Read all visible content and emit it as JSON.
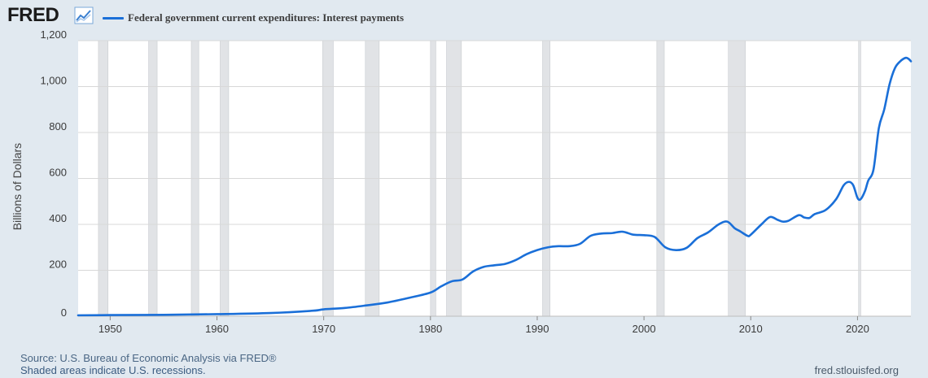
{
  "header": {
    "logo_text": "FRED",
    "logo_icon": "trend-line-icon",
    "legend_label": "Federal government current expenditures: Interest payments"
  },
  "footer": {
    "source": "Source: U.S. Bureau of Economic Analysis via FRED®",
    "note": "Shaded areas indicate U.S. recessions.",
    "url": "fred.stlouisfed.org"
  },
  "colors": {
    "line": "#1a6fd8",
    "background": "#e1e9f0",
    "plot_bg": "#ffffff",
    "grid": "#d8d8d8",
    "recession": "#e1e3e6"
  },
  "chart_data": {
    "type": "line",
    "title": "",
    "xlabel": "",
    "ylabel": "Billions of Dollars",
    "xlim": [
      1947,
      2025
    ],
    "ylim": [
      0,
      1200
    ],
    "yticks": [
      0,
      200,
      400,
      600,
      800,
      1000,
      1200
    ],
    "ytick_labels": [
      "0",
      "200",
      "400",
      "600",
      "800",
      "1,000",
      "1,200"
    ],
    "xticks": [
      1950,
      1960,
      1970,
      1980,
      1990,
      2000,
      2010,
      2020
    ],
    "xtick_labels": [
      "1950",
      "1960",
      "1970",
      "1980",
      "1990",
      "2000",
      "2010",
      "2020"
    ],
    "grid": true,
    "legend_position": "top-left",
    "recessions": [
      [
        1948.9,
        1949.8
      ],
      [
        1953.6,
        1954.4
      ],
      [
        1957.6,
        1958.3
      ],
      [
        1960.3,
        1961.1
      ],
      [
        1969.9,
        1970.9
      ],
      [
        1973.9,
        1975.2
      ],
      [
        1980.0,
        1980.5
      ],
      [
        1981.5,
        1982.9
      ],
      [
        1990.5,
        1991.2
      ],
      [
        2001.2,
        2001.9
      ],
      [
        2007.9,
        2009.5
      ],
      [
        2020.1,
        2020.3
      ]
    ],
    "series": [
      {
        "name": "Federal government current expenditures: Interest payments",
        "x": [
          1947,
          1950,
          1955,
          1960,
          1965,
          1969,
          1970,
          1972,
          1974,
          1976,
          1978,
          1980,
          1981,
          1982,
          1983,
          1984,
          1985,
          1986,
          1987,
          1988,
          1989,
          1990,
          1991,
          1992,
          1993,
          1994,
          1995,
          1996,
          1997,
          1998,
          1999,
          2000,
          2001,
          2002,
          2003,
          2004,
          2005,
          2006,
          2007,
          2007.8,
          2008.5,
          2009,
          2009.7,
          2010,
          2011,
          2011.8,
          2012.5,
          2013,
          2013.5,
          2014.5,
          2015,
          2015.5,
          2016,
          2017,
          2018,
          2018.7,
          2019.2,
          2019.6,
          2020,
          2020.3,
          2020.7,
          2021,
          2021.5,
          2022,
          2022.5,
          2023,
          2023.5,
          2024,
          2024.5,
          2024.8,
          2025
        ],
        "y": [
          4,
          5,
          6,
          9,
          14,
          24,
          30,
          36,
          47,
          60,
          80,
          103,
          130,
          152,
          160,
          195,
          215,
          222,
          228,
          245,
          270,
          288,
          300,
          305,
          305,
          315,
          350,
          360,
          362,
          368,
          355,
          353,
          345,
          300,
          288,
          298,
          340,
          365,
          400,
          412,
          383,
          370,
          350,
          355,
          400,
          432,
          420,
          412,
          415,
          440,
          430,
          428,
          445,
          462,
          510,
          570,
          585,
          570,
          515,
          510,
          545,
          590,
          640,
          820,
          900,
          1010,
          1080,
          1110,
          1125,
          1120,
          1110
        ]
      }
    ]
  }
}
